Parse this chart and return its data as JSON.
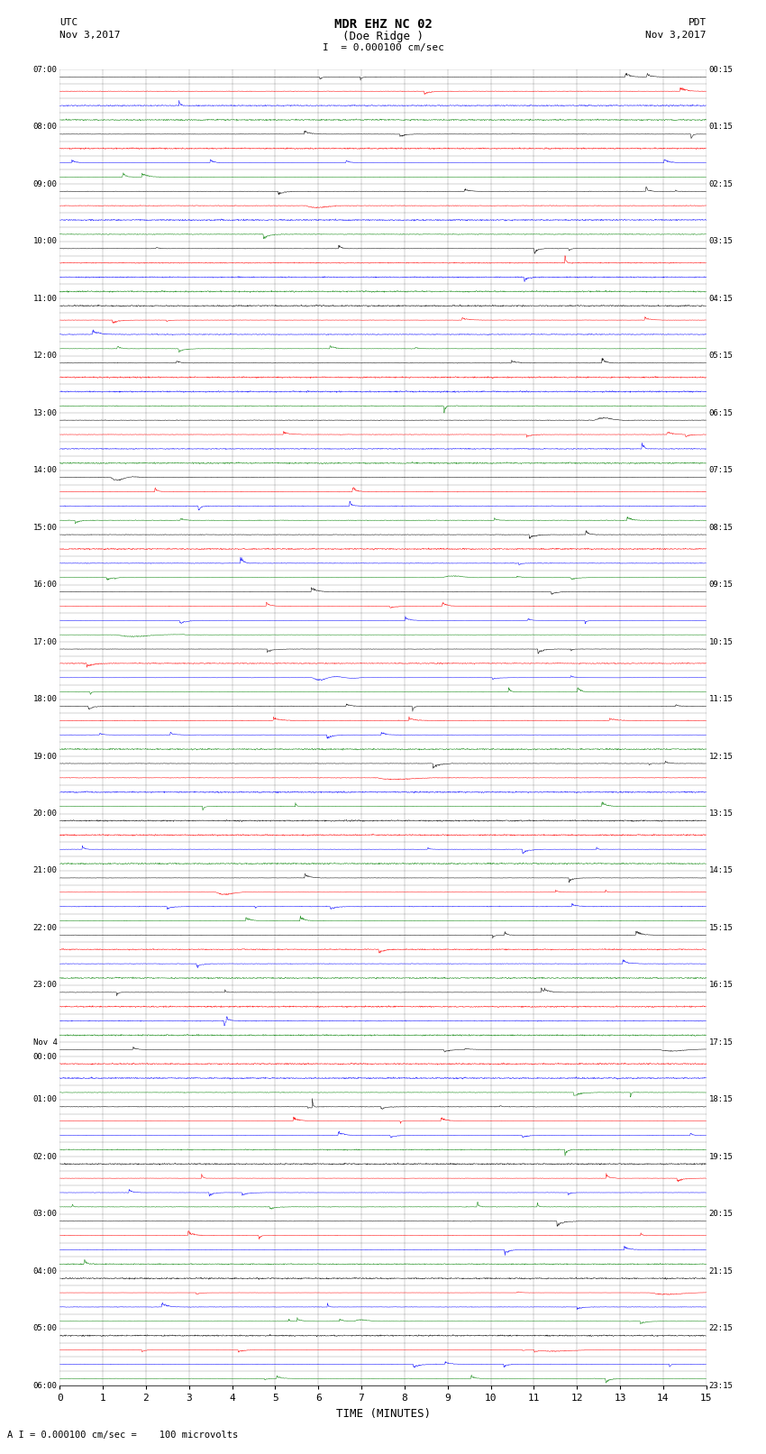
{
  "title_line1": "MDR EHZ NC 02",
  "title_line2": "(Doe Ridge )",
  "scale_label": "I  = 0.000100 cm/sec",
  "utc_label": "UTC",
  "pdt_label": "PDT",
  "date_left": "Nov 3,2017",
  "date_right": "Nov 3,2017",
  "bottom_label": "A I = 0.000100 cm/sec =    100 microvolts",
  "xlabel": "TIME (MINUTES)",
  "left_times": [
    "07:00",
    "",
    "",
    "",
    "08:00",
    "",
    "",
    "",
    "09:00",
    "",
    "",
    "",
    "10:00",
    "",
    "",
    "",
    "11:00",
    "",
    "",
    "",
    "12:00",
    "",
    "",
    "",
    "13:00",
    "",
    "",
    "",
    "14:00",
    "",
    "",
    "",
    "15:00",
    "",
    "",
    "",
    "16:00",
    "",
    "",
    "",
    "17:00",
    "",
    "",
    "",
    "18:00",
    "",
    "",
    "",
    "19:00",
    "",
    "",
    "",
    "20:00",
    "",
    "",
    "",
    "21:00",
    "",
    "",
    "",
    "22:00",
    "",
    "",
    "",
    "23:00",
    "",
    "",
    "",
    "Nov 4",
    "00:00",
    "",
    "",
    "01:00",
    "",
    "",
    "",
    "02:00",
    "",
    "",
    "",
    "03:00",
    "",
    "",
    "",
    "04:00",
    "",
    "",
    "",
    "05:00",
    "",
    "",
    "",
    "06:00",
    "",
    "",
    ""
  ],
  "right_times": [
    "00:15",
    "",
    "",
    "",
    "01:15",
    "",
    "",
    "",
    "02:15",
    "",
    "",
    "",
    "03:15",
    "",
    "",
    "",
    "04:15",
    "",
    "",
    "",
    "05:15",
    "",
    "",
    "",
    "06:15",
    "",
    "",
    "",
    "07:15",
    "",
    "",
    "",
    "08:15",
    "",
    "",
    "",
    "09:15",
    "",
    "",
    "",
    "10:15",
    "",
    "",
    "",
    "11:15",
    "",
    "",
    "",
    "12:15",
    "",
    "",
    "",
    "13:15",
    "",
    "",
    "",
    "14:15",
    "",
    "",
    "",
    "15:15",
    "",
    "",
    "",
    "16:15",
    "",
    "",
    "",
    "17:15",
    "",
    "",
    "",
    "18:15",
    "",
    "",
    "",
    "19:15",
    "",
    "",
    "",
    "20:15",
    "",
    "",
    "",
    "21:15",
    "",
    "",
    "",
    "22:15",
    "",
    "",
    "",
    "23:15",
    "",
    "",
    ""
  ],
  "n_rows": 92,
  "colors": [
    "black",
    "red",
    "blue",
    "green"
  ],
  "bg_color": "#ffffff",
  "fig_width": 8.5,
  "fig_height": 16.13
}
